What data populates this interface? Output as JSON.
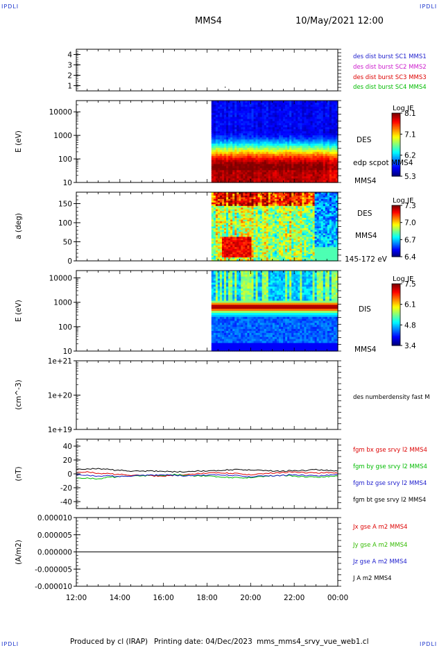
{
  "corners": {
    "tl": "IPDLI",
    "tr": "IPDLI",
    "bl": "IPDLI",
    "br": "IPDLI"
  },
  "header": {
    "spacecraft": "MMS4",
    "datetime": "10/May/2021 12:00"
  },
  "footer": {
    "produced_by": "Produced by cl (IRAP)",
    "printing_date": "Printing date: 04/Dec/2023",
    "script_name": "mms_mms4_srvy_vue_web1.cl"
  },
  "chart_data": [
    {
      "type": "scatter",
      "id": "burst",
      "ylim": [
        0.5,
        4.5
      ],
      "yticks": [
        1,
        2,
        3,
        4
      ],
      "yticklabels": [
        "1",
        "2",
        "3",
        "4"
      ],
      "right_labels": [
        {
          "text": "des dist burst SC1 MMS1",
          "color": "#1a1acc"
        },
        {
          "text": "des dist burst SC2 MMS2",
          "color": "#cc1acc"
        },
        {
          "text": "des dist burst SC3 MMS3",
          "color": "#dd0000"
        },
        {
          "text": "des dist burst SC4 MMS4",
          "color": "#00bb00"
        }
      ]
    },
    {
      "type": "heatmap",
      "id": "des_energy",
      "ylabel": "E (eV)",
      "log": true,
      "ylim": [
        10,
        30000
      ],
      "yticks": [
        10,
        100,
        1000,
        10000
      ],
      "yticklabels": [
        "10",
        "100",
        "1000",
        "10000"
      ],
      "data_start_hour": 18.2,
      "right_labels": [
        "DES",
        "edp scpot MMS4",
        "MMS4"
      ],
      "colorbar": {
        "title": "Log JE",
        "min": 5.3,
        "max": 8.1,
        "ticks": [
          "8.1",
          "7.1",
          "6.2",
          "5.3"
        ]
      }
    },
    {
      "type": "heatmap",
      "id": "des_pitch",
      "ylabel": "a (deg)",
      "ylim": [
        0,
        180
      ],
      "yticks": [
        0,
        50,
        100,
        150
      ],
      "yticklabels": [
        "0",
        "50",
        "100",
        "150"
      ],
      "data_start_hour": 18.2,
      "right_labels": [
        "DES",
        "MMS4",
        "145-172 eV"
      ],
      "colorbar": {
        "title": "Log JE",
        "min": 6.4,
        "max": 7.3,
        "ticks": [
          "7.3",
          "7.0",
          "6.7",
          "6.4"
        ]
      }
    },
    {
      "type": "heatmap",
      "id": "dis_energy",
      "ylabel": "E (eV)",
      "log": true,
      "ylim": [
        10,
        20000
      ],
      "yticks": [
        10,
        100,
        1000,
        10000
      ],
      "yticklabels": [
        "10",
        "100",
        "1000",
        "10000"
      ],
      "data_start_hour": 18.2,
      "right_labels": [
        "DIS",
        "MMS4"
      ],
      "colorbar": {
        "title": "Log JE",
        "min": 3.4,
        "max": 7.5,
        "ticks": [
          "7.5",
          "6.1",
          "4.8",
          "3.4"
        ]
      }
    },
    {
      "type": "line",
      "id": "density",
      "ylabel": "(cm^-3)",
      "log": true,
      "ylim": [
        1e+19,
        1e+21
      ],
      "yticks": [
        1e+19,
        1e+20,
        1e+21
      ],
      "yticklabels": [
        "1e+19",
        "1e+20",
        "1e+21"
      ],
      "right_labels": [
        {
          "text": "des numberdensity fast M",
          "color": "#000000"
        }
      ]
    },
    {
      "type": "line",
      "id": "fgm",
      "ylabel": "(nT)",
      "ylim": [
        -50,
        50
      ],
      "yticks": [
        -40,
        -20,
        0,
        20,
        40
      ],
      "yticklabels": [
        "-40",
        "-20",
        "0",
        "20",
        "40"
      ],
      "x": [
        12,
        12.5,
        13,
        13.5,
        14,
        14.5,
        15,
        15.5,
        16,
        16.5,
        17,
        17.5,
        18,
        18.5,
        19,
        19.5,
        20,
        20.5,
        21,
        21.5,
        22,
        22.5,
        23,
        23.5,
        24
      ],
      "series": [
        {
          "name": "fgm bx gse srvy l2 MMS4",
          "color": "#dd0000",
          "values": [
            2,
            3,
            1,
            0,
            -1,
            -2,
            -2,
            -3,
            -3,
            -2,
            -1,
            0,
            1,
            2,
            1,
            0,
            -1,
            0,
            1,
            2,
            3,
            2,
            1,
            2,
            1
          ]
        },
        {
          "name": "fgm by gse srvy l2 MMS4",
          "color": "#00bb00",
          "values": [
            -6,
            -6,
            -7,
            -5,
            -4,
            -3,
            -3,
            -2,
            -2,
            -1,
            -2,
            -3,
            -3,
            -4,
            -5,
            -6,
            -5,
            -4,
            -3,
            -2,
            -3,
            -4,
            -5,
            -4,
            -3
          ]
        },
        {
          "name": "fgm bz gse srvy l2 MMS4",
          "color": "#1a1acc",
          "values": [
            -1,
            -2,
            -3,
            -3,
            -4,
            -3,
            -2,
            -2,
            -1,
            -2,
            -3,
            -2,
            -2,
            -1,
            -2,
            -3,
            -4,
            -3,
            -3,
            -2,
            -1,
            -2,
            -3,
            -2,
            -1
          ]
        },
        {
          "name": "fgm bt gse srvy l2 MMS4",
          "color": "#000000",
          "values": [
            7,
            7,
            8,
            6,
            5,
            4,
            4,
            4,
            4,
            3,
            3,
            4,
            4,
            5,
            6,
            6,
            6,
            5,
            4,
            4,
            5,
            5,
            6,
            5,
            4
          ]
        }
      ]
    },
    {
      "type": "line",
      "id": "current",
      "ylabel": "(A/m2)",
      "ylim": [
        -1e-05,
        1e-05
      ],
      "yticks": [
        -1e-05,
        -5e-06,
        0,
        5e-06,
        1e-05
      ],
      "yticklabels": [
        "-0.000010",
        "-0.000005",
        "0.000000",
        "0.000005",
        "0.000010"
      ],
      "x": [
        12,
        24
      ],
      "series": [
        {
          "name": "Jx gse A m2 MMS4",
          "color": "#dd0000",
          "values": [
            0,
            0
          ]
        },
        {
          "name": "Jy gse A m2 MMS4",
          "color": "#33bb00",
          "values": [
            0,
            0
          ]
        },
        {
          "name": "Jz gse A m2 MMS4",
          "color": "#1a1acc",
          "values": [
            0,
            0
          ]
        },
        {
          "name": "J A m2 MMS4",
          "color": "#000000",
          "values": [
            0,
            0
          ]
        }
      ]
    }
  ],
  "xaxis": {
    "xlim": [
      12,
      24
    ],
    "ticks": [
      12,
      14,
      16,
      18,
      20,
      22,
      24
    ],
    "labels": [
      "12:00",
      "14:00",
      "16:00",
      "18:00",
      "20:00",
      "22:00",
      "00:00"
    ]
  }
}
